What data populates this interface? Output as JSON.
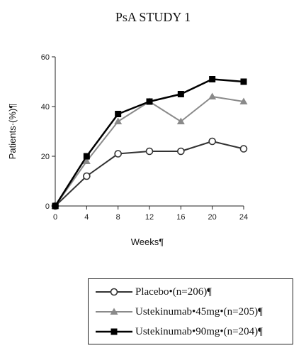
{
  "chart_data": {
    "type": "line",
    "title": "PsA STUDY 1",
    "xlabel": "Weeks¶",
    "ylabel": "Patients·(%)¶",
    "x": [
      0,
      4,
      8,
      12,
      16,
      20,
      24
    ],
    "xlim": [
      0,
      24
    ],
    "ylim": [
      0,
      60
    ],
    "yticks": [
      0,
      20,
      40,
      60
    ],
    "grid": false,
    "legend_position": "bottom",
    "series": [
      {
        "name": "Placebo•(n=206)¶",
        "marker": "circle-open",
        "color": "#333333",
        "values": [
          0,
          12,
          21,
          22,
          22,
          26,
          23
        ]
      },
      {
        "name": "Ustekinumab•45mg•(n=205)¶",
        "marker": "triangle",
        "color": "#8a8a8a",
        "values": [
          0,
          18,
          34,
          42,
          34,
          44,
          42
        ]
      },
      {
        "name": "Ustekinumab•90mg•(n=204)¶",
        "marker": "square",
        "color": "#000000",
        "values": [
          0,
          20,
          37,
          42,
          45,
          51,
          50
        ]
      }
    ]
  }
}
